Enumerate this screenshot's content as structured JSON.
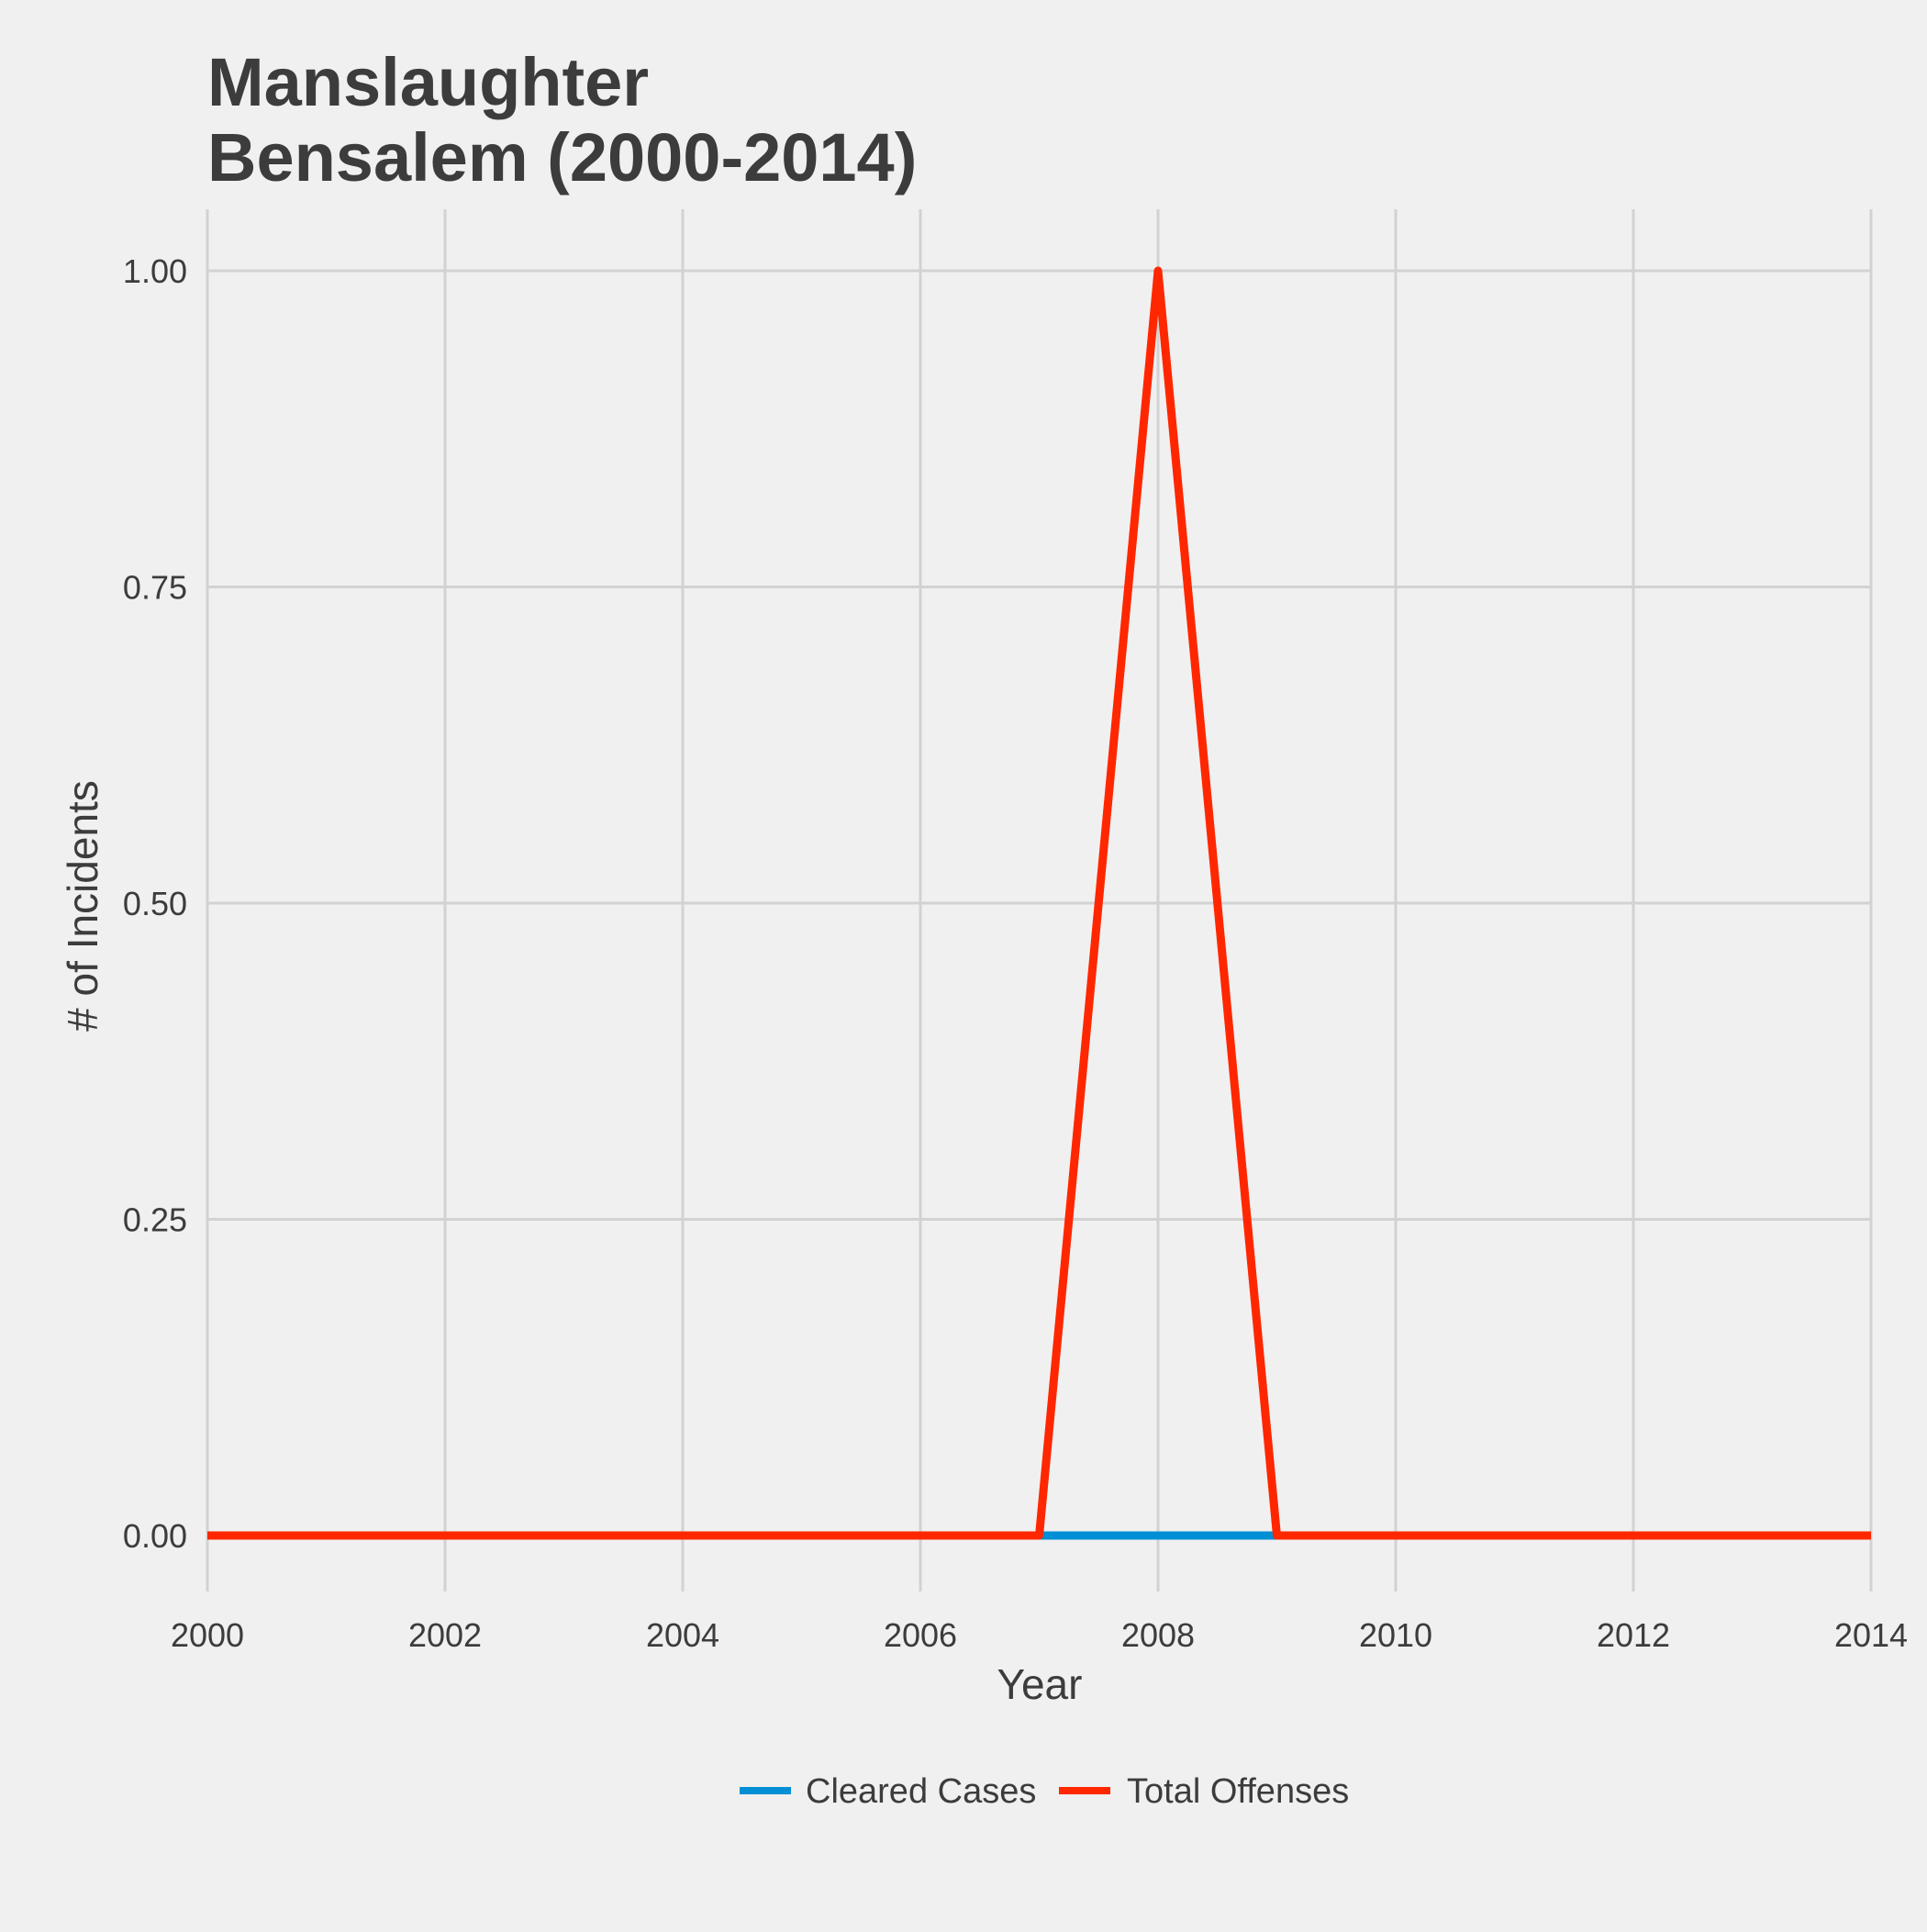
{
  "chart_data": {
    "type": "line",
    "title_lines": [
      "Manslaughter",
      "Bensalem (2000-2014)"
    ],
    "xlabel": "Year",
    "ylabel": "# of Incidents",
    "xlim": [
      2000,
      2014
    ],
    "ylim": [
      0,
      1
    ],
    "x_ticks": [
      2000,
      2002,
      2004,
      2006,
      2008,
      2010,
      2012,
      2014
    ],
    "y_ticks": [
      "0.00",
      "0.25",
      "0.50",
      "0.75",
      "1.00"
    ],
    "x": [
      2000,
      2001,
      2002,
      2003,
      2004,
      2005,
      2006,
      2007,
      2008,
      2009,
      2010,
      2011,
      2012,
      2013,
      2014
    ],
    "series": [
      {
        "name": "Cleared Cases",
        "color": "#008fd5",
        "values": [
          0,
          0,
          0,
          0,
          0,
          0,
          0,
          0,
          0,
          0,
          0,
          0,
          0,
          0,
          0
        ]
      },
      {
        "name": "Total Offenses",
        "color": "#ff2700",
        "values": [
          0,
          0,
          0,
          0,
          0,
          0,
          0,
          0,
          1,
          0,
          0,
          0,
          0,
          0,
          0
        ]
      }
    ],
    "grid": true,
    "legend_position": "bottom"
  }
}
